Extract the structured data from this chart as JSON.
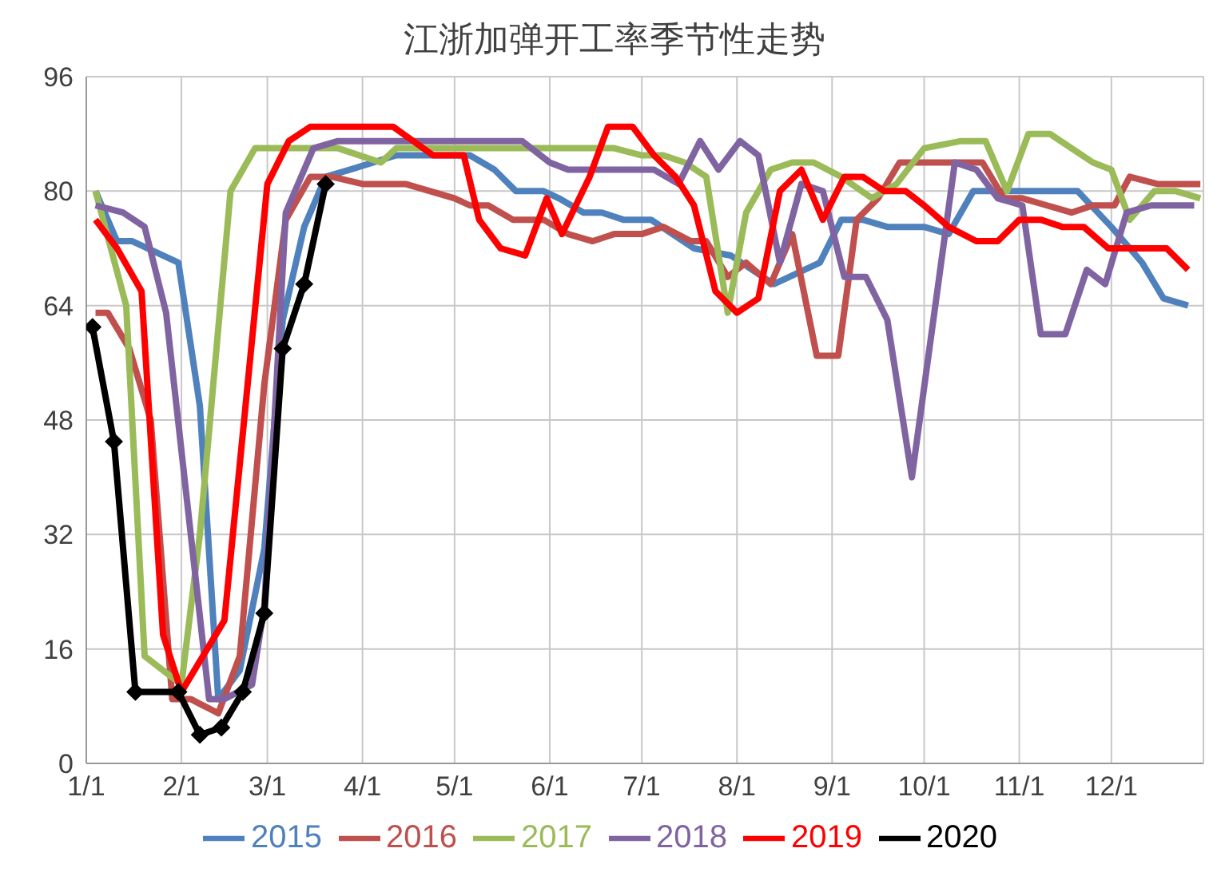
{
  "chart_data": {
    "type": "line",
    "title": "江浙加弹开工率季节性走势",
    "xlim": [
      "--01-01",
      "--12-31"
    ],
    "xticks": [
      {
        "value": "--01-01",
        "label": "1/1"
      },
      {
        "value": "--02-01",
        "label": "2/1"
      },
      {
        "value": "--03-01",
        "label": "3/1"
      },
      {
        "value": "--04-01",
        "label": "4/1"
      },
      {
        "value": "--05-01",
        "label": "5/1"
      },
      {
        "value": "--06-01",
        "label": "6/1"
      },
      {
        "value": "--07-01",
        "label": "7/1"
      },
      {
        "value": "--08-01",
        "label": "8/1"
      },
      {
        "value": "--09-01",
        "label": "9/1"
      },
      {
        "value": "--10-01",
        "label": "10/1"
      },
      {
        "value": "--11-01",
        "label": "11/1"
      },
      {
        "value": "--12-01",
        "label": "12/1"
      }
    ],
    "ylim": [
      0,
      96
    ],
    "yticks": [
      0,
      16,
      32,
      48,
      64,
      80,
      96
    ],
    "grid": true,
    "legend": "bottom",
    "line_style": "solid",
    "series": [
      {
        "name": "2015",
        "color": "#4f81bd",
        "x": [
          "--01-04",
          "--01-11",
          "--01-16",
          "--01-31",
          "--02-07",
          "--02-13",
          "--02-20",
          "--02-28",
          "--03-06",
          "--03-13",
          "--03-20",
          "--03-28",
          "--04-12",
          "--05-06",
          "--05-14",
          "--05-21",
          "--05-30",
          "--06-04",
          "--06-12",
          "--06-18",
          "--06-25",
          "--07-04",
          "--07-11",
          "--07-18",
          "--07-30",
          "--08-06",
          "--08-13",
          "--08-28",
          "--09-04",
          "--09-11",
          "--09-19",
          "--10-01",
          "--10-09",
          "--10-17",
          "--11-01",
          "--11-20",
          "--12-01",
          "--12-11",
          "--12-18",
          "--12-26"
        ],
        "values": [
          80,
          73,
          73,
          70,
          50,
          9,
          13,
          30,
          62,
          75,
          82,
          83,
          85,
          85,
          83,
          80,
          80,
          79,
          77,
          77,
          76,
          76,
          74,
          72,
          71,
          69,
          67,
          70,
          76,
          76,
          75,
          75,
          74,
          80,
          80,
          80,
          75,
          70,
          65,
          64
        ]
      },
      {
        "name": "2016",
        "color": "#c0504d",
        "x": [
          "--01-04",
          "--01-08",
          "--01-15",
          "--01-22",
          "--01-29",
          "--02-04",
          "--02-13",
          "--02-20",
          "--02-28",
          "--03-07",
          "--03-15",
          "--03-22",
          "--04-01",
          "--04-15",
          "--04-23",
          "--05-01",
          "--05-06",
          "--05-12",
          "--05-20",
          "--05-30",
          "--06-07",
          "--06-15",
          "--06-22",
          "--07-01",
          "--07-08",
          "--07-17",
          "--07-22",
          "--07-29",
          "--08-04",
          "--08-12",
          "--08-19",
          "--08-27",
          "--09-03",
          "--09-09",
          "--09-16",
          "--09-23",
          "--10-03",
          "--10-20",
          "--10-27",
          "--11-02",
          "--11-10",
          "--11-18",
          "--11-25",
          "--12-02",
          "--12-07",
          "--12-16",
          "--12-30"
        ],
        "values": [
          63,
          63,
          58,
          48,
          9,
          9,
          7,
          15,
          53,
          76,
          82,
          82,
          81,
          81,
          80,
          79,
          78,
          78,
          76,
          76,
          74,
          73,
          74,
          74,
          75,
          73,
          73,
          68,
          70,
          67,
          74,
          57,
          57,
          76,
          79,
          84,
          84,
          84,
          79,
          79,
          78,
          77,
          78,
          78,
          82,
          81,
          81
        ]
      },
      {
        "name": "2017",
        "color": "#9bbb59",
        "x": [
          "--01-04",
          "--01-14",
          "--01-20",
          "--02-01",
          "--02-07",
          "--02-17",
          "--02-25",
          "--03-15",
          "--03-24",
          "--04-07",
          "--04-12",
          "--06-22",
          "--07-01",
          "--07-08",
          "--07-15",
          "--07-22",
          "--07-29",
          "--08-04",
          "--08-12",
          "--08-19",
          "--08-26",
          "--09-04",
          "--09-14",
          "--09-22",
          "--10-01",
          "--10-13",
          "--10-21",
          "--10-28",
          "--11-04",
          "--11-11",
          "--11-18",
          "--11-25",
          "--12-01",
          "--12-07",
          "--12-15",
          "--12-22",
          "--12-30"
        ],
        "values": [
          80,
          64,
          15,
          11,
          32,
          80,
          86,
          86,
          86,
          84,
          86,
          86,
          85,
          85,
          84,
          82,
          63,
          77,
          83,
          84,
          84,
          82,
          79,
          81,
          86,
          87,
          87,
          80,
          88,
          88,
          86,
          84,
          83,
          76,
          80,
          80,
          79
        ]
      },
      {
        "name": "2018",
        "color": "#8064a2",
        "x": [
          "--01-04",
          "--01-13",
          "--01-20",
          "--01-27",
          "--02-10",
          "--02-15",
          "--02-24",
          "--02-28",
          "--03-07",
          "--03-16",
          "--03-24",
          "--05-23",
          "--06-01",
          "--06-07",
          "--07-05",
          "--07-13",
          "--07-20",
          "--07-26",
          "--08-02",
          "--08-08",
          "--08-15",
          "--08-22",
          "--08-29",
          "--09-05",
          "--09-12",
          "--09-19",
          "--09-27",
          "--10-11",
          "--10-18",
          "--10-25",
          "--11-02",
          "--11-08",
          "--11-16",
          "--11-23",
          "--11-29",
          "--12-06",
          "--12-14",
          "--12-28"
        ],
        "values": [
          78,
          77,
          75,
          63,
          9,
          9,
          11,
          22,
          77,
          86,
          87,
          87,
          84,
          83,
          83,
          81,
          87,
          83,
          87,
          85,
          70,
          81,
          80,
          68,
          68,
          62,
          40,
          84,
          83,
          79,
          78,
          60,
          60,
          69,
          67,
          77,
          78,
          78
        ]
      },
      {
        "name": "2019",
        "color": "#ff0000",
        "x": [
          "--01-04",
          "--01-11",
          "--01-19",
          "--01-26",
          "--02-01",
          "--02-15",
          "--03-01",
          "--03-08",
          "--03-15",
          "--04-11",
          "--04-24",
          "--05-04",
          "--05-09",
          "--05-16",
          "--05-24",
          "--05-31",
          "--06-05",
          "--06-14",
          "--06-20",
          "--06-28",
          "--07-05",
          "--07-12",
          "--07-18",
          "--07-25",
          "--08-01",
          "--08-08",
          "--08-15",
          "--08-22",
          "--08-29",
          "--09-05",
          "--09-11",
          "--09-18",
          "--09-25",
          "--10-01",
          "--10-09",
          "--10-18",
          "--10-25",
          "--11-01",
          "--11-08",
          "--11-15",
          "--11-22",
          "--11-30",
          "--12-06",
          "--12-19",
          "--12-26"
        ],
        "values": [
          76,
          72,
          66,
          18,
          10,
          20,
          81,
          87,
          89,
          89,
          85,
          85,
          76,
          72,
          71,
          79,
          74,
          82,
          89,
          89,
          85,
          82,
          78,
          66,
          63,
          65,
          80,
          83,
          76,
          82,
          82,
          80,
          80,
          78,
          75,
          73,
          73,
          76,
          76,
          75,
          75,
          72,
          72,
          72,
          69
        ]
      },
      {
        "name": "2020",
        "color": "#000000",
        "marker": "diamond",
        "x": [
          "--01-03",
          "--01-10",
          "--01-17",
          "--01-31",
          "--02-07",
          "--02-14",
          "--02-21",
          "--02-28",
          "--03-06",
          "--03-13",
          "--03-20"
        ],
        "values": [
          61,
          45,
          10,
          10,
          4,
          5,
          10,
          21,
          58,
          67,
          81
        ]
      }
    ]
  }
}
